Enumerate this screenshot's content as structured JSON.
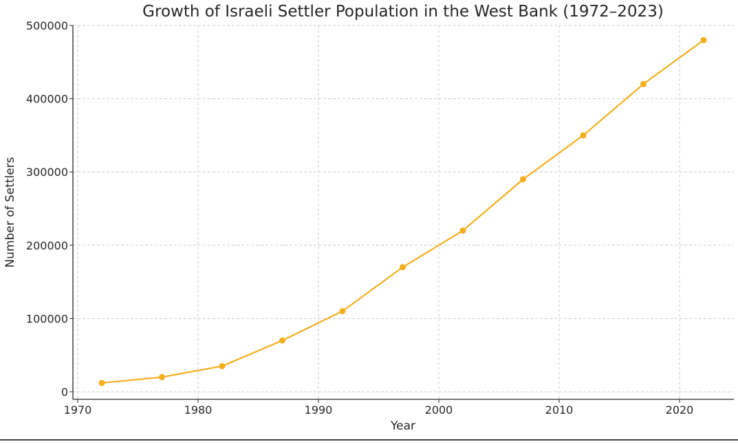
{
  "chart_data": {
    "type": "line",
    "title": "Growth of Israeli Settler Population in the West Bank (1972–2023)",
    "xlabel": "Year",
    "ylabel": "Number of Settlers",
    "xlim": [
      1970,
      2024.5
    ],
    "ylim": [
      -10000,
      500000
    ],
    "x_ticks": [
      1970,
      1980,
      1990,
      2000,
      2010,
      2020
    ],
    "y_ticks": [
      0,
      100000,
      200000,
      300000,
      400000,
      500000
    ],
    "grid": true,
    "line_color": "#f5ae1c",
    "series": [
      {
        "x": [
          1972,
          1977,
          1982,
          1987,
          1992,
          1997,
          2002,
          2007,
          2012,
          2017,
          2022
        ],
        "values": [
          12000,
          20000,
          35000,
          70000,
          110000,
          170000,
          220000,
          290000,
          350000,
          420000,
          480000
        ]
      }
    ]
  }
}
